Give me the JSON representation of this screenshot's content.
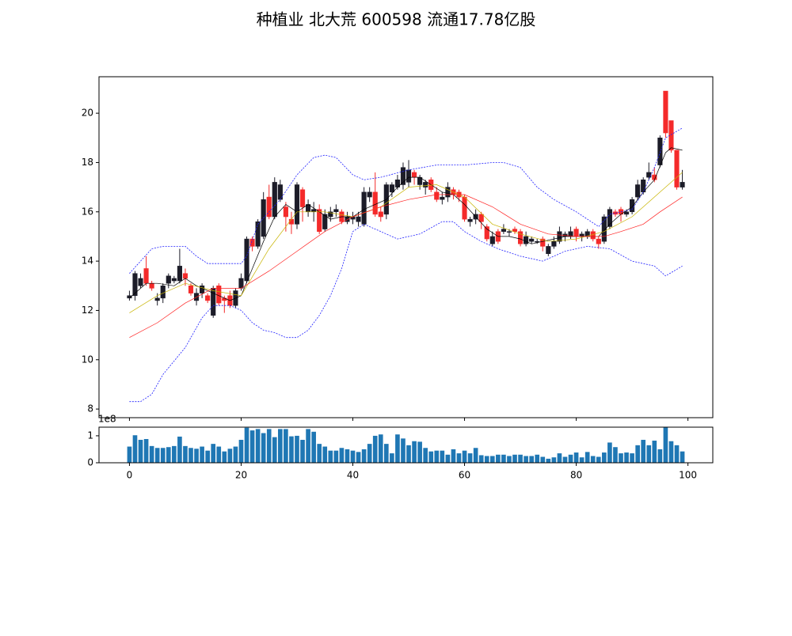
{
  "chart_data": [
    {
      "type": "candlestick",
      "title": "种植业 北大荒 600598 流通17.78亿股",
      "x": [
        0,
        1,
        2,
        3,
        4,
        5,
        6,
        7,
        8,
        9,
        10,
        11,
        12,
        13,
        14,
        15,
        16,
        17,
        18,
        19,
        20,
        21,
        22,
        23,
        24,
        25,
        26,
        27,
        28,
        29,
        30,
        31,
        32,
        33,
        34,
        35,
        36,
        37,
        38,
        39,
        40,
        41,
        42,
        43,
        44,
        45,
        46,
        47,
        48,
        49,
        50,
        51,
        52,
        53,
        54,
        55,
        56,
        57,
        58,
        59,
        60,
        61,
        62,
        63,
        64,
        65,
        66,
        67,
        68,
        69,
        70,
        71,
        72,
        73,
        74,
        75,
        76,
        77,
        78,
        79,
        80,
        81,
        82,
        83,
        84,
        85,
        86,
        87,
        88,
        89,
        90,
        91,
        92,
        93,
        94,
        95,
        96,
        97,
        98,
        99
      ],
      "open": [
        12.5,
        12.6,
        13.0,
        13.7,
        13.1,
        12.4,
        12.5,
        13.1,
        13.2,
        13.2,
        13.5,
        13.0,
        12.4,
        12.7,
        12.6,
        11.8,
        13.0,
        12.5,
        12.6,
        12.2,
        12.9,
        13.2,
        14.9,
        14.6,
        15.0,
        16.6,
        15.8,
        16.5,
        16.2,
        15.7,
        15.5,
        16.9,
        16.0,
        16.0,
        16.1,
        15.3,
        15.8,
        16.0,
        16.0,
        15.6,
        15.7,
        15.6,
        15.5,
        16.6,
        16.8,
        16.0,
        15.9,
        16.8,
        17.0,
        17.1,
        17.2,
        17.6,
        17.1,
        17.0,
        17.3,
        16.8,
        16.5,
        16.6,
        16.9,
        16.8,
        16.6,
        15.6,
        15.7,
        15.9,
        15.4,
        14.7,
        15.2,
        15.2,
        15.2,
        15.3,
        15.2,
        14.7,
        14.8,
        14.8,
        14.9,
        14.3,
        14.6,
        14.8,
        15.0,
        15.0,
        15.3,
        15.0,
        15.0,
        15.2,
        14.9,
        14.8,
        15.4,
        16.0,
        16.1,
        15.9,
        16.0,
        16.6,
        16.8,
        17.4,
        17.5,
        17.9,
        20.9,
        19.7,
        18.5,
        17.0
      ],
      "close": [
        12.6,
        13.5,
        13.3,
        13.1,
        12.9,
        12.5,
        13.0,
        13.4,
        13.3,
        13.8,
        13.3,
        12.7,
        12.7,
        13.0,
        12.4,
        12.9,
        12.3,
        12.4,
        12.2,
        12.8,
        13.3,
        14.9,
        14.6,
        15.6,
        16.5,
        15.8,
        17.2,
        17.1,
        15.8,
        15.5,
        17.1,
        16.2,
        16.3,
        16.1,
        15.2,
        15.9,
        16.0,
        16.1,
        15.6,
        15.8,
        15.8,
        15.8,
        16.8,
        16.8,
        15.9,
        15.8,
        17.1,
        17.1,
        17.3,
        17.8,
        17.7,
        17.4,
        17.4,
        17.2,
        16.9,
        16.5,
        16.6,
        17.0,
        16.7,
        16.6,
        15.7,
        15.7,
        15.9,
        15.6,
        14.9,
        15.0,
        14.8,
        15.3,
        15.2,
        15.2,
        14.7,
        15.0,
        14.9,
        14.8,
        14.6,
        14.6,
        14.8,
        15.2,
        15.1,
        15.2,
        15.0,
        15.1,
        15.2,
        14.9,
        14.7,
        15.8,
        16.1,
        15.9,
        15.9,
        16.0,
        16.5,
        17.1,
        17.3,
        17.6,
        17.3,
        19.0,
        19.2,
        18.5,
        17.0,
        17.2
      ],
      "high": [
        12.8,
        13.6,
        13.5,
        14.2,
        13.2,
        12.7,
        13.1,
        13.5,
        13.4,
        14.5,
        13.7,
        13.1,
        12.9,
        13.1,
        12.7,
        13.0,
        13.1,
        12.6,
        12.8,
        12.9,
        13.5,
        15.0,
        15.0,
        15.7,
        16.8,
        17.1,
        17.4,
        17.3,
        16.4,
        16.0,
        17.2,
        17.0,
        16.5,
        16.4,
        16.3,
        16.1,
        16.2,
        16.3,
        16.1,
        16.0,
        16.0,
        16.0,
        17.0,
        17.0,
        17.6,
        16.2,
        17.2,
        17.2,
        17.5,
        18.0,
        18.1,
        17.7,
        17.5,
        17.3,
        17.4,
        17.0,
        16.8,
        17.2,
        17.0,
        16.9,
        16.7,
        15.8,
        16.1,
        16.0,
        15.5,
        15.2,
        15.3,
        15.5,
        15.3,
        15.4,
        15.3,
        15.2,
        15.0,
        14.9,
        15.0,
        14.7,
        15.0,
        15.4,
        15.2,
        15.4,
        15.4,
        15.2,
        15.3,
        15.3,
        15.0,
        15.9,
        16.2,
        16.1,
        16.2,
        16.1,
        16.6,
        17.3,
        17.4,
        18.0,
        17.8,
        19.1,
        20.9,
        19.7,
        18.5,
        17.7
      ],
      "low": [
        12.4,
        12.4,
        12.9,
        13.0,
        12.8,
        12.2,
        12.3,
        12.9,
        13.1,
        13.1,
        13.0,
        12.6,
        12.2,
        12.5,
        12.3,
        11.7,
        12.2,
        11.9,
        12.1,
        12.1,
        12.8,
        13.1,
        14.4,
        14.5,
        14.9,
        15.7,
        15.7,
        16.4,
        15.2,
        15.1,
        15.3,
        15.6,
        15.8,
        15.6,
        15.1,
        15.2,
        15.6,
        15.8,
        15.5,
        15.5,
        15.5,
        15.4,
        15.4,
        16.4,
        15.8,
        15.6,
        15.7,
        16.6,
        16.9,
        16.9,
        17.0,
        17.1,
        16.9,
        16.7,
        16.8,
        16.4,
        16.3,
        16.4,
        16.5,
        16.4,
        15.6,
        15.4,
        15.5,
        15.3,
        14.8,
        14.6,
        14.7,
        15.1,
        15.0,
        15.1,
        14.6,
        14.6,
        14.7,
        14.7,
        14.4,
        14.2,
        14.5,
        14.7,
        14.8,
        14.9,
        14.8,
        14.8,
        14.9,
        14.8,
        14.5,
        14.7,
        15.3,
        15.8,
        15.6,
        15.8,
        15.9,
        16.5,
        16.7,
        17.3,
        17.2,
        17.8,
        19.0,
        18.4,
        16.9,
        16.9
      ],
      "up_color": "#1c1c28",
      "down_color": "#f42a2a",
      "xlim": [
        -5.45,
        104.45
      ],
      "ylim": [
        7.65,
        21.48
      ],
      "xticks": [
        0,
        20,
        40,
        60,
        80,
        100
      ],
      "yticks": [
        8,
        10,
        12,
        14,
        16,
        18,
        20
      ],
      "series": [
        {
          "color": "#000000",
          "style": "solid",
          "x": [
            0,
            3,
            5,
            8,
            10,
            12,
            15,
            18,
            20,
            22,
            24,
            26,
            28,
            30,
            32,
            34,
            36,
            38,
            40,
            42,
            44,
            46,
            48,
            50,
            52,
            54,
            56,
            58,
            60,
            62,
            64,
            66,
            68,
            70,
            72,
            74,
            76,
            78,
            80,
            82,
            84,
            86,
            88,
            90,
            92,
            94,
            96,
            97,
            99
          ],
          "values": [
            12.5,
            13.1,
            13.1,
            13.0,
            13.3,
            13.0,
            12.7,
            12.4,
            12.6,
            13.7,
            14.8,
            15.8,
            16.3,
            16.0,
            16.3,
            16.0,
            15.7,
            15.8,
            15.8,
            16.1,
            16.3,
            16.5,
            17.0,
            17.4,
            17.4,
            17.1,
            16.8,
            16.7,
            16.3,
            15.8,
            15.3,
            15.0,
            15.0,
            14.9,
            14.7,
            14.8,
            14.9,
            15.0,
            15.0,
            15.0,
            15.0,
            15.5,
            15.9,
            16.2,
            16.8,
            17.3,
            18.4,
            18.6,
            18.5
          ]
        },
        {
          "color": "#c8b400",
          "style": "solid",
          "x": [
            0,
            5,
            10,
            15,
            20,
            25,
            30,
            35,
            40,
            45,
            50,
            55,
            60,
            65,
            70,
            75,
            80,
            85,
            90,
            95,
            99
          ],
          "values": [
            11.9,
            12.6,
            13.1,
            12.8,
            12.6,
            14.5,
            16.0,
            16.0,
            15.8,
            16.2,
            17.0,
            17.1,
            16.6,
            15.5,
            15.1,
            14.8,
            14.9,
            15.2,
            15.8,
            16.8,
            17.6
          ]
        },
        {
          "color": "#ff2020",
          "style": "solid",
          "x": [
            0,
            5,
            10,
            15,
            18,
            20,
            25,
            30,
            35,
            40,
            45,
            50,
            55,
            60,
            65,
            70,
            75,
            80,
            85,
            88,
            92,
            95,
            99
          ],
          "values": [
            10.9,
            11.5,
            12.3,
            12.9,
            12.9,
            12.9,
            13.6,
            14.4,
            15.2,
            15.8,
            16.2,
            16.5,
            16.7,
            16.7,
            16.2,
            15.5,
            15.1,
            15.0,
            15.0,
            15.2,
            15.5,
            16.0,
            16.6
          ]
        },
        {
          "color": "#2020ff",
          "style": "dashed",
          "x": [
            0,
            2,
            4,
            6,
            10,
            12,
            14,
            20,
            21,
            23,
            27,
            30,
            33,
            35,
            37,
            40,
            42,
            45,
            50,
            55,
            60,
            65,
            67,
            70,
            73,
            76,
            80,
            82,
            84,
            86,
            88,
            90,
            92,
            94,
            96,
            99
          ],
          "values": [
            13.5,
            14.0,
            14.5,
            14.6,
            14.6,
            14.2,
            13.9,
            13.9,
            14.2,
            15.5,
            16.5,
            17.5,
            18.2,
            18.3,
            18.2,
            17.5,
            17.3,
            17.4,
            17.7,
            17.9,
            17.9,
            18.0,
            18.0,
            17.8,
            17.0,
            16.5,
            16.0,
            15.7,
            15.4,
            15.9,
            16.0,
            16.1,
            16.8,
            17.8,
            19.0,
            19.4
          ]
        },
        {
          "color": "#2020ff",
          "style": "dashed",
          "x": [
            0,
            2,
            4,
            6,
            10,
            13,
            15,
            18,
            20,
            22,
            24,
            26,
            28,
            30,
            32,
            34,
            36,
            38,
            40,
            42,
            45,
            48,
            52,
            56,
            58,
            60,
            63,
            66,
            70,
            74,
            78,
            82,
            86,
            90,
            94,
            96,
            99
          ],
          "values": [
            8.3,
            8.3,
            8.6,
            9.4,
            10.5,
            11.7,
            12.2,
            12.2,
            12.0,
            11.5,
            11.2,
            11.1,
            10.9,
            10.9,
            11.2,
            11.8,
            12.6,
            13.7,
            15.2,
            15.5,
            15.2,
            14.9,
            15.1,
            15.6,
            15.6,
            15.2,
            14.8,
            14.5,
            14.2,
            14.0,
            14.4,
            14.6,
            14.5,
            14.0,
            13.8,
            13.4,
            13.8
          ]
        }
      ]
    },
    {
      "type": "bar",
      "x": [
        0,
        1,
        2,
        3,
        4,
        5,
        6,
        7,
        8,
        9,
        10,
        11,
        12,
        13,
        14,
        15,
        16,
        17,
        18,
        19,
        20,
        21,
        22,
        23,
        24,
        25,
        26,
        27,
        28,
        29,
        30,
        31,
        32,
        33,
        34,
        35,
        36,
        37,
        38,
        39,
        40,
        41,
        42,
        43,
        44,
        45,
        46,
        47,
        48,
        49,
        50,
        51,
        52,
        53,
        54,
        55,
        56,
        57,
        58,
        59,
        60,
        61,
        62,
        63,
        64,
        65,
        66,
        67,
        68,
        69,
        70,
        71,
        72,
        73,
        74,
        75,
        76,
        77,
        78,
        79,
        80,
        81,
        82,
        83,
        84,
        85,
        86,
        87,
        88,
        89,
        90,
        91,
        92,
        93,
        94,
        95,
        96,
        97,
        98,
        99
      ],
      "values": [
        60000000,
        102000000,
        85000000,
        88000000,
        62000000,
        55000000,
        55000000,
        58000000,
        62000000,
        97000000,
        62000000,
        55000000,
        52000000,
        60000000,
        45000000,
        70000000,
        60000000,
        42000000,
        52000000,
        60000000,
        85000000,
        130000000,
        120000000,
        125000000,
        110000000,
        125000000,
        95000000,
        125000000,
        125000000,
        98000000,
        100000000,
        85000000,
        125000000,
        115000000,
        70000000,
        60000000,
        45000000,
        45000000,
        55000000,
        50000000,
        45000000,
        40000000,
        50000000,
        70000000,
        100000000,
        105000000,
        70000000,
        35000000,
        105000000,
        90000000,
        65000000,
        80000000,
        78000000,
        55000000,
        42000000,
        45000000,
        45000000,
        30000000,
        50000000,
        35000000,
        45000000,
        35000000,
        55000000,
        28000000,
        25000000,
        25000000,
        30000000,
        30000000,
        25000000,
        30000000,
        30000000,
        25000000,
        25000000,
        30000000,
        22000000,
        15000000,
        20000000,
        35000000,
        22000000,
        30000000,
        38000000,
        20000000,
        40000000,
        25000000,
        22000000,
        38000000,
        75000000,
        58000000,
        35000000,
        38000000,
        35000000,
        65000000,
        85000000,
        65000000,
        82000000,
        50000000,
        132000000,
        80000000,
        65000000,
        42000000
      ],
      "color": "#1f77b4",
      "xlim": [
        -5.45,
        104.45
      ],
      "ylim": [
        0,
        132000000
      ],
      "xticks": [
        0,
        20,
        40,
        60,
        80,
        100
      ],
      "yticks": [
        0,
        {
          "value": 100000000,
          "label": "1"
        }
      ],
      "offset_text": "1e8"
    }
  ]
}
